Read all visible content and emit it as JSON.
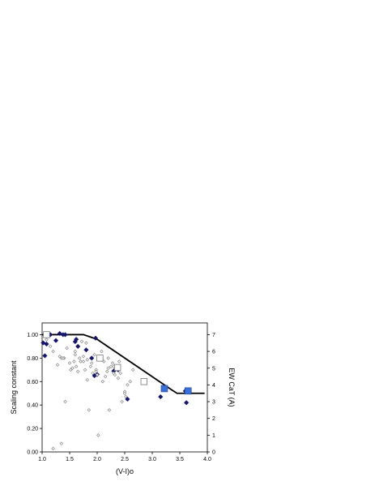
{
  "chart_data": {
    "type": "scatter",
    "title": "",
    "xlabel": "(V-I)o",
    "ylabel": "Scaling constant",
    "y2label": "EW CaT (A)",
    "xlim": [
      1.0,
      4.0
    ],
    "ylim": [
      0.0,
      1.1
    ],
    "y2lim": [
      0,
      7.7
    ],
    "x_ticks": [
      1.0,
      1.5,
      2.0,
      2.5,
      3.0,
      3.5,
      4.0
    ],
    "x_tick_labels": [
      "1.0",
      "1.5",
      "2.0",
      "2.5",
      "3.0",
      "3.5",
      "4.0"
    ],
    "y_ticks": [
      0.0,
      0.2,
      0.4,
      0.6,
      0.8,
      1.0
    ],
    "y_tick_labels": [
      "0.00",
      "0.20",
      "0.40",
      "0.60",
      "0.80",
      "1.00"
    ],
    "y2_ticks": [
      0,
      1,
      2,
      3,
      4,
      5,
      6,
      7
    ],
    "y2_tick_labels": [
      "0",
      "1",
      "2",
      "3",
      "4",
      "5",
      "6",
      "7"
    ],
    "grid": false,
    "legend": "none",
    "colors": {
      "line": "#000000",
      "filled_diamond": "#15156b",
      "open_diamond": "#777777",
      "open_square": "#777777",
      "filled_square": "#3a6fd8"
    },
    "series": [
      {
        "marker": "line",
        "axis": "left",
        "x": [
          1.0,
          1.75,
          2.0,
          3.35,
          3.45,
          3.95
        ],
        "y": [
          1.0,
          1.0,
          0.96,
          0.53,
          0.5,
          0.5
        ]
      },
      {
        "marker": "filled-diamond",
        "axis": "left",
        "x": [
          1.02,
          1.05,
          1.08,
          1.15,
          1.25,
          1.32,
          1.38,
          1.42,
          1.6,
          1.62,
          1.65,
          1.8,
          1.9,
          1.95,
          1.97,
          2.0,
          2.3,
          2.38,
          2.55,
          3.15,
          3.6,
          3.62
        ],
        "y": [
          0.93,
          0.82,
          0.92,
          1.0,
          0.95,
          1.01,
          1.0,
          1.0,
          0.94,
          0.96,
          0.9,
          0.87,
          0.8,
          0.65,
          0.97,
          0.66,
          0.69,
          0.7,
          0.45,
          0.47,
          0.52,
          0.42
        ]
      },
      {
        "marker": "open-diamond",
        "axis": "right",
        "x": [
          1.08,
          1.15,
          1.2,
          1.28,
          1.32,
          1.35,
          1.4,
          1.42,
          1.45,
          1.5,
          1.52,
          1.55,
          1.58,
          1.6,
          1.62,
          1.65,
          1.68,
          1.7,
          1.72,
          1.75,
          1.78,
          1.8,
          1.82,
          1.85,
          1.88,
          1.9,
          1.92,
          1.95,
          1.98,
          2.0,
          2.02,
          2.05,
          2.08,
          2.1,
          2.12,
          2.15,
          2.18,
          2.2,
          2.22,
          2.25,
          2.28,
          2.3,
          2.32,
          2.35,
          2.38,
          2.4,
          2.42,
          2.45,
          2.5,
          2.52,
          2.55,
          2.6,
          2.65,
          1.2,
          1.35,
          1.98,
          2.2,
          1.82,
          1.38,
          1.6,
          1.75,
          2.3,
          2.5
        ],
        "y": [
          6.7,
          6.3,
          6.0,
          5.2,
          5.7,
          5.6,
          5.6,
          3.0,
          6.2,
          5.3,
          4.9,
          5.0,
          5.4,
          6.0,
          5.1,
          4.8,
          5.6,
          5.4,
          6.6,
          5.7,
          4.9,
          6.5,
          4.3,
          2.5,
          5.1,
          5.3,
          4.7,
          5.8,
          4.9,
          4.6,
          1.0,
          5.7,
          6.0,
          4.2,
          5.4,
          4.5,
          4.8,
          5.6,
          2.5,
          5.1,
          5.3,
          5.1,
          4.6,
          5.0,
          4.4,
          5.4,
          4.7,
          3.0,
          3.6,
          3.3,
          4.0,
          4.2,
          4.9,
          0.2,
          0.5,
          4.8,
          5.0,
          5.5,
          5.6,
          5.8,
          5.4,
          4.7,
          3.5
        ]
      },
      {
        "marker": "open-square",
        "axis": "left",
        "x": [
          1.08,
          2.05,
          2.37,
          2.85
        ],
        "y": [
          1.0,
          0.8,
          0.72,
          0.6
        ]
      },
      {
        "marker": "filled-square",
        "axis": "left",
        "x": [
          3.22,
          3.65
        ],
        "y": [
          0.54,
          0.52
        ]
      }
    ]
  }
}
